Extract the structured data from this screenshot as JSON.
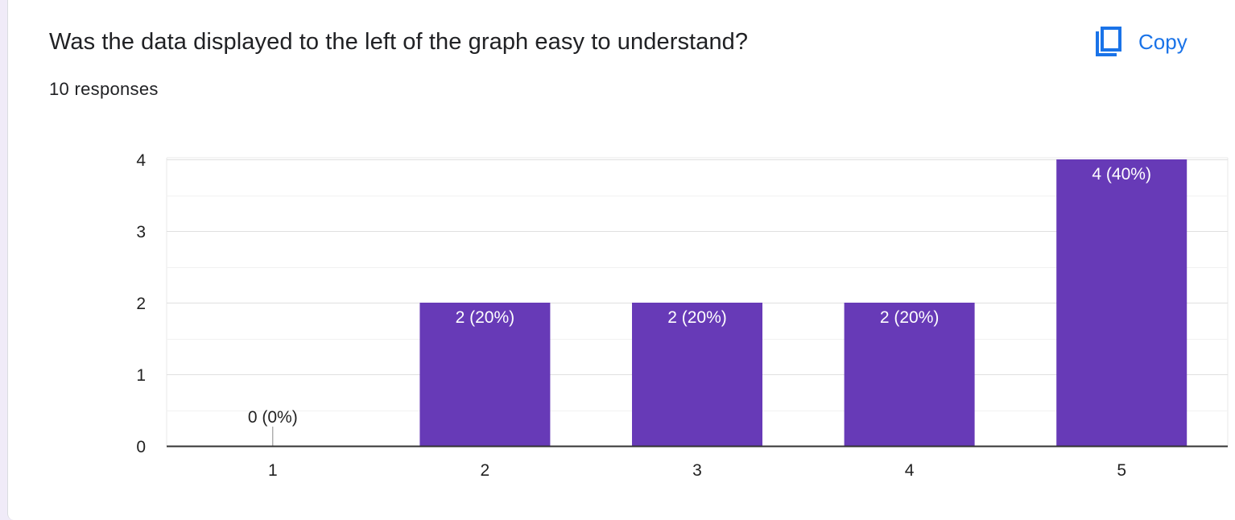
{
  "question": {
    "title": "Was the data displayed to the left of the graph easy to understand?",
    "responses": "10 responses"
  },
  "copy": {
    "label": "Copy",
    "icon": "copy-icon",
    "color": "#1a73e8"
  },
  "colors": {
    "bar": "#673ab7",
    "grid": "#e8e8e8",
    "axis": "#333333"
  },
  "chart_data": {
    "type": "bar",
    "categories": [
      "1",
      "2",
      "3",
      "4",
      "5"
    ],
    "values": [
      0,
      2,
      2,
      2,
      4
    ],
    "data_labels": [
      "0 (0%)",
      "2 (20%)",
      "2 (20%)",
      "2 (20%)",
      "4 (40%)"
    ],
    "yticks": [
      "0",
      "1",
      "2",
      "3",
      "4"
    ],
    "ylim": [
      0,
      4
    ],
    "grid": true,
    "xlabel": "",
    "ylabel": ""
  }
}
